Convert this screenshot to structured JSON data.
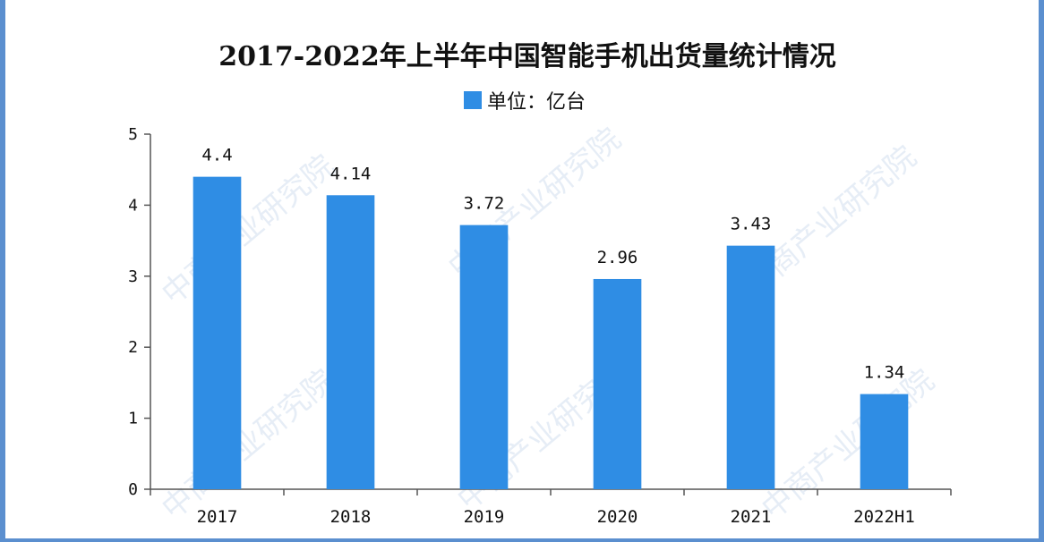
{
  "colors": {
    "bar": "#2f8de4",
    "axis": "#555555",
    "frame": "#5b8fcf"
  },
  "watermark_text": "中商产业研究院",
  "chart_data": {
    "type": "bar",
    "title": "2017-2022年上半年中国智能手机出货量统计情况",
    "legend": "单位：亿台",
    "legend_placement": "top-center",
    "categories": [
      "2017",
      "2018",
      "2019",
      "2020",
      "2021",
      "2022H1"
    ],
    "values": [
      4.4,
      4.14,
      3.72,
      2.96,
      3.43,
      1.34
    ],
    "value_labels": [
      "4.4",
      "4.14",
      "3.72",
      "2.96",
      "3.43",
      "1.34"
    ],
    "yticks": [
      "0",
      "1",
      "2",
      "3",
      "4",
      "5"
    ],
    "ylim": [
      0,
      5
    ],
    "grid": false,
    "xlabel": "",
    "ylabel": ""
  }
}
